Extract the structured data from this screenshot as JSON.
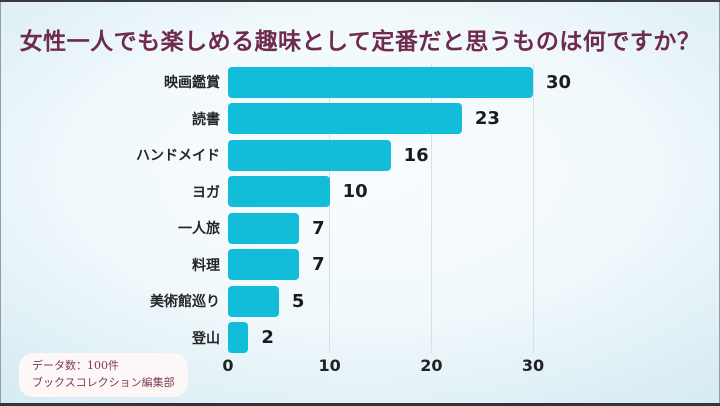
{
  "title": "女性一人でも楽しめる趣味として定番だと思うものは何ですか？",
  "chart_data": {
    "type": "bar",
    "orientation": "horizontal",
    "title": "女性一人でも楽しめる趣味として定番だと思うものは何ですか？",
    "categories": [
      "映画鑑賞",
      "読書",
      "ハンドメイド",
      "ヨガ",
      "一人旅",
      "料理",
      "美術館巡り",
      "登山"
    ],
    "values": [
      30,
      23,
      16,
      10,
      7,
      7,
      5,
      2
    ],
    "xlim": [
      0,
      30
    ],
    "x_ticks": [
      0,
      10,
      20,
      30
    ],
    "grid": "vertical-only",
    "legend": "none",
    "bar_color": "#12bdd9"
  },
  "footer": {
    "line1": "データ数：100件",
    "line2": "ブックスコレクション編集部"
  },
  "colors": {
    "title_text": "#6e2b4b",
    "bar": "#12bdd9",
    "value_label": "#1b1b1b",
    "gridline": "#d7e0e6",
    "background_center": "#f8fcfe",
    "background_edge": "#d3e9f1",
    "badge_background": "#fdf7f7",
    "badge_text": "#7c3b55"
  }
}
